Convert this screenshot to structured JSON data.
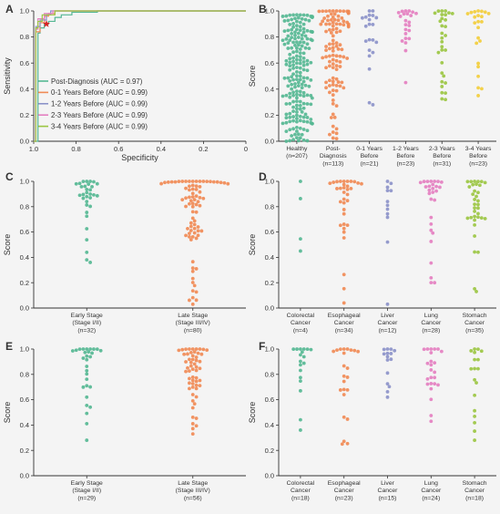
{
  "colors": {
    "teal": "#55b793",
    "orange": "#f08a55",
    "purple": "#8c93c9",
    "pink": "#e47fc0",
    "green": "#9bc542",
    "yellow": "#f2cd3b",
    "red_marker": "#d62424",
    "axis": "#333333"
  },
  "chart_data": [
    {
      "panel": "A",
      "type": "line",
      "xlabel": "Specificity",
      "ylabel": "Sensitivity",
      "xlim": [
        1.0,
        0.0
      ],
      "ylim": [
        0.0,
        1.0
      ],
      "xticks": [
        "1.0",
        "0.8",
        "0.6",
        "0.4",
        "0.2",
        "0"
      ],
      "yticks": [
        "0.0",
        "0.2",
        "0.4",
        "0.6",
        "0.8",
        "1.0"
      ],
      "legend_position": "bottom-left",
      "marker": {
        "specificity": 0.94,
        "sensitivity": 0.9
      },
      "series": [
        {
          "name": "Post-Diagnosis (AUC = 0.97)",
          "color": "teal",
          "x": [
            1,
            0.98,
            0.98,
            0.97,
            0.97,
            0.95,
            0.95,
            0.93,
            0.93,
            0.9,
            0.9,
            0.87,
            0.87,
            0.82,
            0.82,
            0.7,
            0.7,
            0
          ],
          "y": [
            0,
            0,
            0.83,
            0.83,
            0.87,
            0.87,
            0.9,
            0.9,
            0.92,
            0.92,
            0.95,
            0.95,
            0.97,
            0.97,
            0.99,
            0.99,
            1.0,
            1.0
          ]
        },
        {
          "name": "0-1 Years Before (AUC = 0.99)",
          "color": "orange",
          "x": [
            1,
            0.99,
            0.99,
            0.97,
            0.97,
            0.95,
            0.95,
            0.93,
            0.93,
            0.9,
            0.9,
            0
          ],
          "y": [
            0,
            0,
            0.84,
            0.84,
            0.91,
            0.91,
            0.96,
            0.96,
            0.98,
            0.98,
            1.0,
            1.0
          ]
        },
        {
          "name": "1-2 Years Before (AUC = 0.99)",
          "color": "purple",
          "x": [
            1,
            0.99,
            0.99,
            0.97,
            0.97,
            0.94,
            0.94,
            0.92,
            0.92,
            0
          ],
          "y": [
            0,
            0,
            0.88,
            0.88,
            0.93,
            0.93,
            0.97,
            0.97,
            1.0,
            1.0
          ]
        },
        {
          "name": "2-3 Years Before (AUC = 0.99)",
          "color": "pink",
          "x": [
            1,
            0.99,
            0.99,
            0.98,
            0.98,
            0.95,
            0.95,
            0.91,
            0.91,
            0
          ],
          "y": [
            0,
            0,
            0.86,
            0.86,
            0.94,
            0.94,
            0.98,
            0.98,
            1.0,
            1.0
          ]
        },
        {
          "name": "3-4 Years Before (AUC = 0.99)",
          "color": "green",
          "x": [
            1,
            0.99,
            0.99,
            0.98,
            0.98,
            0.96,
            0.96,
            0.9,
            0.9,
            0
          ],
          "y": [
            0,
            0,
            0.87,
            0.87,
            0.92,
            0.92,
            0.97,
            0.97,
            1.0,
            1.0
          ]
        }
      ]
    },
    {
      "panel": "B",
      "type": "scatter",
      "ylabel": "Score",
      "ylim": [
        0.0,
        1.0
      ],
      "yticks": [
        "0.0",
        "0.2",
        "0.4",
        "0.6",
        "0.8",
        "1.0"
      ],
      "groups": [
        {
          "label": "Healthy\n(n=207)",
          "color": "teal",
          "n": 207,
          "dist": [
            0,
            0.12,
            0.68,
            0.97
          ],
          "cap": 0.97
        },
        {
          "label": "Post-\nDiagnosis\n(n=113)",
          "color": "orange",
          "n": 113,
          "dist": [
            0.02,
            0.65,
            0.62,
            1.0
          ],
          "cap": 1.0
        },
        {
          "label": "0-1 Years\nBefore\n(n=21)",
          "color": "purple",
          "n": 21,
          "dist": [
            0.28,
            0.72,
            0.4,
            1.0
          ],
          "cap": 1.0
        },
        {
          "label": "1-2 Years\nBefore\n(n=23)",
          "color": "pink",
          "n": 23,
          "dist": [
            0.45,
            0.75,
            0.4,
            1.0
          ],
          "cap": 1.0
        },
        {
          "label": "2-3 Years\nBefore\n(n=31)",
          "color": "green",
          "n": 31,
          "dist": [
            0.32,
            0.55,
            0.4,
            1.0
          ],
          "cap": 1.0
        },
        {
          "label": "3-4 Years\nBefore\n(n=23)",
          "color": "yellow",
          "n": 23,
          "dist": [
            0.35,
            0.6,
            0.4,
            1.0
          ],
          "cap": 1.0
        }
      ]
    },
    {
      "panel": "C",
      "type": "scatter",
      "ylabel": "Score",
      "ylim": [
        0.0,
        1.0
      ],
      "yticks": [
        "0.0",
        "0.2",
        "0.4",
        "0.6",
        "0.8",
        "1.0"
      ],
      "groups": [
        {
          "label": "Early Stage\n(Stage I/II)\n(n=32)",
          "color": "teal",
          "n": 32,
          "dist": [
            0.36,
            0.6,
            0.45,
            1.0
          ],
          "cap": 1.0
        },
        {
          "label": "Late Stage\n(Stage III/IV)\n(n=80)",
          "color": "orange",
          "n": 80,
          "dist": [
            0.03,
            0.6,
            0.5,
            1.0
          ],
          "cap": 1.0
        }
      ]
    },
    {
      "panel": "D",
      "type": "scatter",
      "ylabel": "Score",
      "ylim": [
        0.0,
        1.0
      ],
      "yticks": [
        "0.0",
        "0.2",
        "0.4",
        "0.6",
        "0.8",
        "1.0"
      ],
      "groups": [
        {
          "label": "Colorectal\nCancer\n(n=4)",
          "color": "teal",
          "n": 4,
          "dist": [
            0.45,
            0.5,
            0.4,
            1.0
          ],
          "cap": 1.0
        },
        {
          "label": "Esophageal\nCancer\n(n=34)",
          "color": "orange",
          "n": 34,
          "dist": [
            0.04,
            0.75,
            0.5,
            1.0
          ],
          "cap": 1.0
        },
        {
          "label": "Liver\nCancer\n(n=12)",
          "color": "purple",
          "n": 12,
          "dist": [
            0.03,
            0.7,
            0.4,
            1.0
          ],
          "cap": 1.0
        },
        {
          "label": "Lung\nCancer\n(n=28)",
          "color": "pink",
          "n": 28,
          "dist": [
            0.2,
            0.6,
            0.5,
            1.0
          ],
          "cap": 1.0
        },
        {
          "label": "Stomach\nCancer\n(n=35)",
          "color": "green",
          "n": 35,
          "dist": [
            0.13,
            0.5,
            0.4,
            1.0
          ],
          "cap": 1.0
        }
      ]
    },
    {
      "panel": "E",
      "type": "scatter",
      "ylabel": "Score",
      "ylim": [
        0.0,
        1.0
      ],
      "yticks": [
        "0.0",
        "0.2",
        "0.4",
        "0.6",
        "0.8",
        "1.0"
      ],
      "groups": [
        {
          "label": "Early Stage\n(Stage I/II)\n(n=29)",
          "color": "teal",
          "n": 29,
          "dist": [
            0.28,
            0.6,
            0.45,
            1.0
          ],
          "cap": 1.0
        },
        {
          "label": "Late Stage\n(Stage III/IV)\n(n=56)",
          "color": "orange",
          "n": 56,
          "dist": [
            0.33,
            0.7,
            0.45,
            1.0
          ],
          "cap": 1.0
        }
      ]
    },
    {
      "panel": "F",
      "type": "scatter",
      "ylabel": "Score",
      "ylim": [
        0.0,
        1.0
      ],
      "yticks": [
        "0.0",
        "0.2",
        "0.4",
        "0.6",
        "0.8",
        "1.0"
      ],
      "groups": [
        {
          "label": "Colorectal\nCancer\n(n=18)",
          "color": "teal",
          "n": 18,
          "dist": [
            0.36,
            0.6,
            0.4,
            1.0
          ],
          "cap": 1.0
        },
        {
          "label": "Esophageal\nCancer\n(n=23)",
          "color": "orange",
          "n": 23,
          "dist": [
            0.25,
            0.55,
            0.5,
            1.0
          ],
          "cap": 1.0
        },
        {
          "label": "Liver\nCancer\n(n=15)",
          "color": "purple",
          "n": 15,
          "dist": [
            0.62,
            0.65,
            0.5,
            1.0
          ],
          "cap": 1.0
        },
        {
          "label": "Lung\nCancer\n(n=24)",
          "color": "pink",
          "n": 24,
          "dist": [
            0.43,
            0.65,
            0.5,
            1.0
          ],
          "cap": 1.0
        },
        {
          "label": "Stomach\nCancer\n(n=18)",
          "color": "green",
          "n": 18,
          "dist": [
            0.28,
            0.7,
            0.45,
            1.0
          ],
          "cap": 1.0
        }
      ]
    }
  ]
}
